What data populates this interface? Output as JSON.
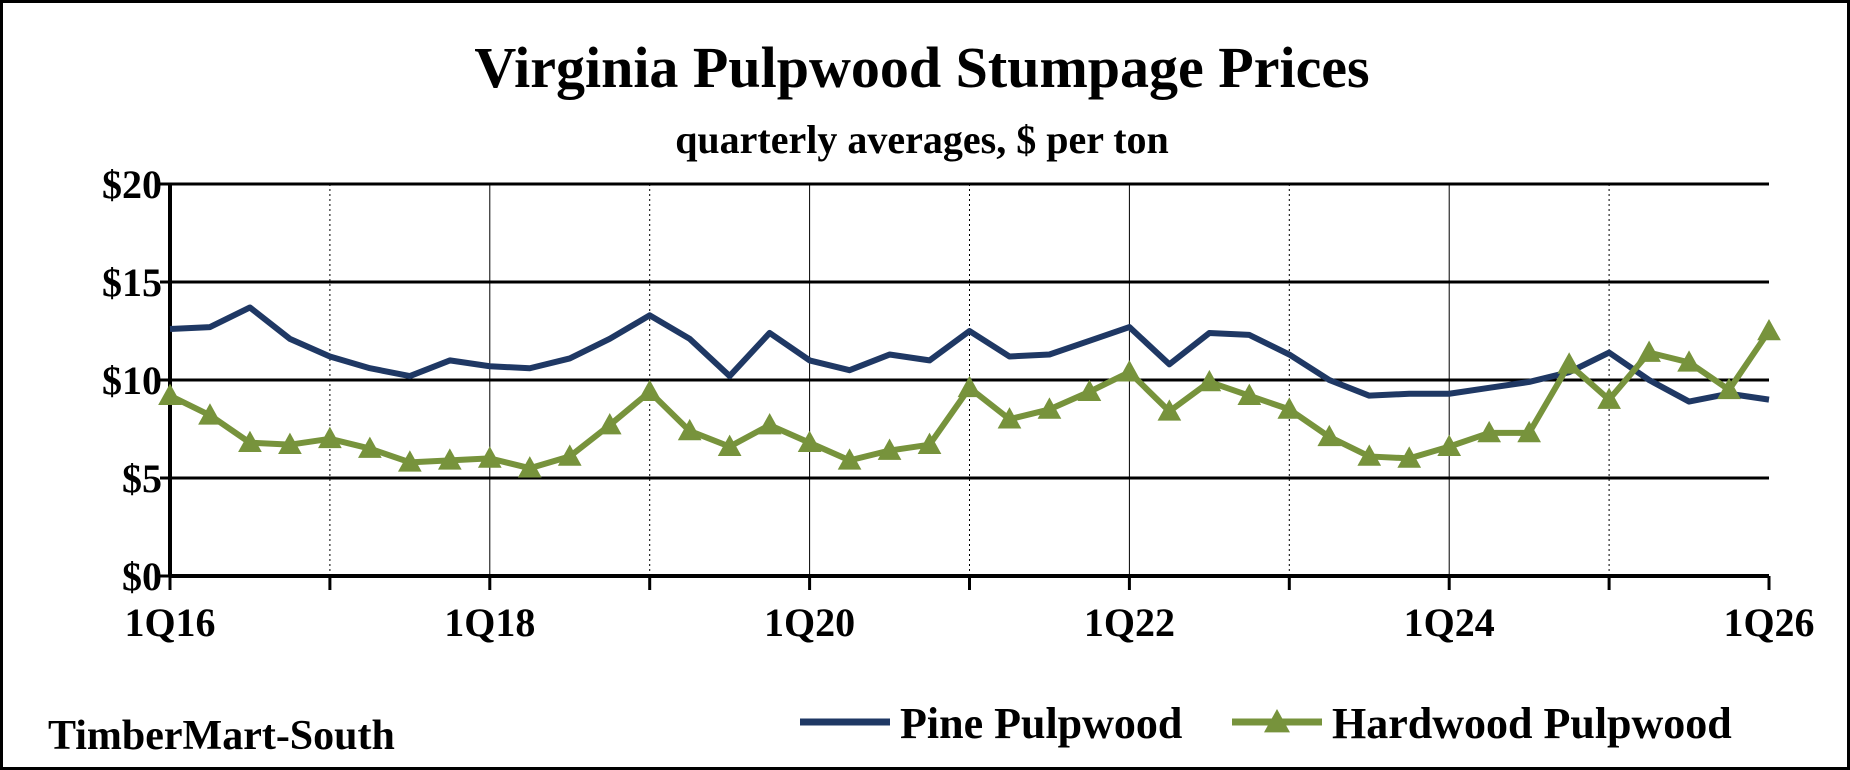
{
  "chart_data": {
    "type": "line",
    "title": "Virginia Pulpwood Stumpage Prices",
    "subtitle": "quarterly averages, $ per ton",
    "source": "TimberMart-South",
    "ylim": [
      0,
      20
    ],
    "yticks": [
      0,
      5,
      10,
      15,
      20
    ],
    "ytick_labels": [
      "$0",
      "$5",
      "$10",
      "$15",
      "$20"
    ],
    "x": [
      "1Q16",
      "2Q16",
      "3Q16",
      "4Q16",
      "1Q17",
      "2Q17",
      "3Q17",
      "4Q17",
      "1Q18",
      "2Q18",
      "3Q18",
      "4Q18",
      "1Q19",
      "2Q19",
      "3Q19",
      "4Q19",
      "1Q20",
      "2Q20",
      "3Q20",
      "4Q20",
      "1Q21",
      "2Q21",
      "3Q21",
      "4Q21",
      "1Q22",
      "2Q22",
      "3Q22",
      "4Q22",
      "1Q23",
      "2Q23",
      "3Q23",
      "4Q23",
      "1Q24",
      "2Q24",
      "3Q24",
      "4Q24",
      "1Q25",
      "2Q25",
      "3Q25",
      "4Q25",
      "1Q26"
    ],
    "xtick_labels": [
      "1Q16",
      "1Q18",
      "1Q20",
      "1Q22",
      "1Q24",
      "1Q26"
    ],
    "grid": "horizontal solid, vertical dotted at each year",
    "legend_position": "bottom-right",
    "series": [
      {
        "name": "Pine Pulpwood",
        "color": "#1f3864",
        "marker": "none",
        "values": [
          12.6,
          12.7,
          13.7,
          12.1,
          11.2,
          10.6,
          10.2,
          11.0,
          10.7,
          10.6,
          11.1,
          12.1,
          13.3,
          12.1,
          10.2,
          12.4,
          11.0,
          10.5,
          11.3,
          11.0,
          12.5,
          11.2,
          11.3,
          12.0,
          12.7,
          10.8,
          12.4,
          12.3,
          11.3,
          10.0,
          9.2,
          9.3,
          9.3,
          9.6,
          9.9,
          10.4,
          11.4,
          10.0,
          8.9,
          9.3,
          9.0
        ]
      },
      {
        "name": "Hardwood Pulpwood",
        "color": "#77933c",
        "marker": "triangle",
        "values": [
          9.2,
          8.2,
          6.8,
          6.7,
          7.0,
          6.5,
          5.8,
          5.9,
          6.0,
          5.5,
          6.1,
          7.7,
          9.4,
          7.4,
          6.6,
          7.7,
          6.8,
          5.9,
          6.4,
          6.7,
          9.6,
          8.0,
          8.5,
          9.4,
          10.4,
          8.4,
          9.9,
          9.2,
          8.5,
          7.1,
          6.1,
          6.0,
          6.6,
          7.3,
          7.3,
          10.8,
          9.0,
          11.4,
          10.9,
          9.5,
          12.5
        ]
      }
    ]
  }
}
